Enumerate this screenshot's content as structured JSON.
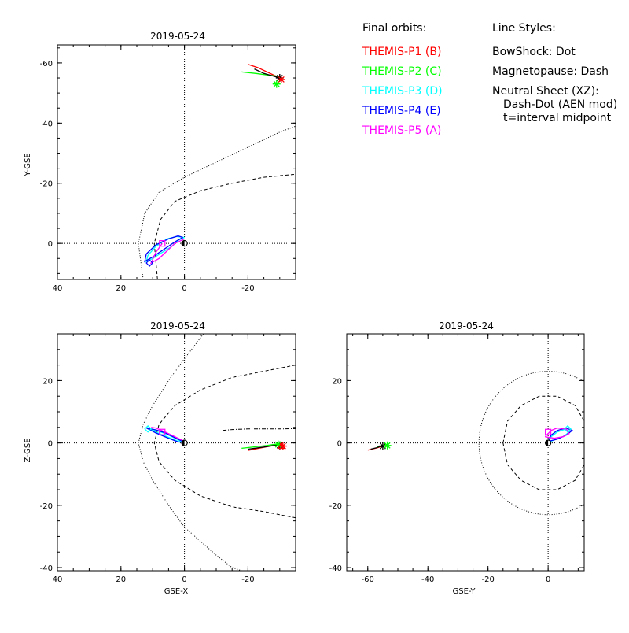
{
  "legend": {
    "title": "Final orbits:",
    "entries": [
      {
        "label": "THEMIS-P1 (B)",
        "color": "#ff0000"
      },
      {
        "label": "THEMIS-P2 (C)",
        "color": "#00ff00"
      },
      {
        "label": "THEMIS-P3 (D)",
        "color": "#00ffff"
      },
      {
        "label": "THEMIS-P4 (E)",
        "color": "#0000ff"
      },
      {
        "label": "THEMIS-P5 (A)",
        "color": "#ff00ff"
      }
    ]
  },
  "line_styles": {
    "title": "Line Styles:",
    "lines": [
      "BowShock: Dot",
      "Magnetopause: Dash",
      "Neutral Sheet (XZ):",
      "Dash-Dot (AEN mod)",
      "t=interval midpoint"
    ]
  },
  "chart_data": [
    {
      "type": "line",
      "title": "2019-05-24",
      "xlabel": "",
      "ylabel": "Y-GSE",
      "xlim": [
        40,
        -35
      ],
      "ylim": [
        12,
        -66
      ],
      "xticks": [
        40,
        20,
        0,
        -20
      ],
      "yticks": [
        0,
        -20,
        -40,
        -60
      ],
      "boundaries": {
        "bowshock": [
          [
            13,
            12
          ],
          [
            14.5,
            0
          ],
          [
            12.5,
            -10
          ],
          [
            8,
            -17
          ],
          [
            0,
            -22
          ],
          [
            -10,
            -27
          ],
          [
            -20,
            -32
          ],
          [
            -30,
            -37
          ],
          [
            -35,
            -39
          ]
        ],
        "magnetopause": [
          [
            8.5,
            12
          ],
          [
            9.5,
            0
          ],
          [
            7.5,
            -8
          ],
          [
            3,
            -14
          ],
          [
            -5,
            -17.5
          ],
          [
            -15,
            -20
          ],
          [
            -25,
            -22
          ],
          [
            -35,
            -23
          ]
        ]
      },
      "series": [
        {
          "name": "THEMIS-P1 (B)",
          "color": "#ff0000",
          "points": [
            [
              -30,
              -55
            ],
            [
              -26,
              -57
            ],
            [
              -23,
              -58.5
            ],
            [
              -20,
              -59.5
            ]
          ]
        },
        {
          "name": "THEMIS-P2 (C)",
          "color": "#00ff00",
          "points": [
            [
              -30,
              -55.5
            ],
            [
              -26,
              -56
            ],
            [
              -22.5,
              -56.5
            ],
            [
              -18,
              -57
            ]
          ]
        },
        {
          "name": "THEMIS-P3 (D)",
          "color": "#00ffff",
          "points": [
            [
              0,
              -2
            ],
            [
              2,
              -1
            ],
            [
              4,
              1
            ],
            [
              7,
              3
            ],
            [
              10,
              5
            ],
            [
              12,
              6
            ],
            [
              11.5,
              4
            ],
            [
              9,
              1
            ],
            [
              5.5,
              -1.5
            ],
            [
              2.5,
              -2.3
            ],
            [
              0,
              -2
            ]
          ]
        },
        {
          "name": "THEMIS-P4 (E)",
          "color": "#0000ff",
          "points": [
            [
              0.5,
              -2
            ],
            [
              3,
              -0.5
            ],
            [
              6.5,
              2
            ],
            [
              10,
              4.5
            ],
            [
              12.5,
              6
            ],
            [
              12,
              3.5
            ],
            [
              9,
              0.5
            ],
            [
              5,
              -1.5
            ],
            [
              2,
              -2.5
            ],
            [
              0.5,
              -2
            ]
          ]
        },
        {
          "name": "THEMIS-P5 (A)",
          "color": "#ff00ff",
          "points": [
            [
              0,
              -1.5
            ],
            [
              3,
              0
            ],
            [
              6,
              3
            ],
            [
              8,
              5
            ],
            [
              10.5,
              6.5
            ],
            [
              9,
              3
            ],
            [
              7,
              0
            ]
          ]
        }
      ],
      "black_track": [
        [
          -30,
          -55
        ],
        [
          -25,
          -56.5
        ],
        [
          -22,
          -58
        ]
      ],
      "markers": [
        {
          "kind": "star",
          "x": -30,
          "y": -55,
          "color": "#000000"
        },
        {
          "kind": "star",
          "x": -29,
          "y": -53,
          "color": "#00ff00"
        },
        {
          "kind": "star",
          "x": -30.5,
          "y": -54.5,
          "color": "#ff0000"
        },
        {
          "kind": "diamond",
          "x": 11,
          "y": 6.5,
          "color": "#0000ff"
        },
        {
          "kind": "square",
          "x": 7,
          "y": 0,
          "color": "#ff00ff"
        },
        {
          "kind": "circle",
          "x": 0,
          "y": 0,
          "color": "#000000"
        }
      ],
      "earth": true
    },
    {
      "type": "line",
      "title": "2019-05-24",
      "xlabel": "GSE-X",
      "ylabel": "Z-GSE",
      "xlim": [
        40,
        -35
      ],
      "ylim": [
        -41,
        35
      ],
      "xticks": [
        40,
        20,
        0,
        -20
      ],
      "yticks": [
        -40,
        -20,
        0,
        20
      ],
      "boundaries": {
        "bowshock": [
          [
            -6,
            35
          ],
          [
            0,
            27
          ],
          [
            5,
            20
          ],
          [
            10,
            12
          ],
          [
            13,
            6
          ],
          [
            14.5,
            0
          ],
          [
            13,
            -6
          ],
          [
            10,
            -12
          ],
          [
            5,
            -20
          ],
          [
            0,
            -27
          ],
          [
            -10,
            -36
          ],
          [
            -15,
            -40
          ],
          [
            -18,
            -41
          ]
        ],
        "magnetopause": [
          [
            -35,
            25
          ],
          [
            -25,
            23
          ],
          [
            -15,
            21
          ],
          [
            -5,
            17
          ],
          [
            3,
            12
          ],
          [
            8,
            6
          ],
          [
            9.5,
            0
          ],
          [
            8,
            -6
          ],
          [
            3,
            -12
          ],
          [
            -5,
            -17
          ],
          [
            -15,
            -20.5
          ],
          [
            -25,
            -22
          ],
          [
            -35,
            -24
          ]
        ],
        "neutral_sheet": [
          [
            -12,
            4
          ],
          [
            -15,
            4.3
          ],
          [
            -20,
            4.5
          ],
          [
            -30,
            4.5
          ],
          [
            -35,
            4.6
          ]
        ]
      },
      "series": [
        {
          "name": "THEMIS-P1 (B)",
          "color": "#ff0000",
          "points": [
            [
              -30,
              -0.5
            ],
            [
              -26,
              -1.2
            ],
            [
              -23,
              -1.8
            ],
            [
              -20,
              -2.4
            ]
          ]
        },
        {
          "name": "THEMIS-P2 (C)",
          "color": "#00ff00",
          "points": [
            [
              -30,
              -0.2
            ],
            [
              -26,
              -0.8
            ],
            [
              -22.5,
              -1.2
            ],
            [
              -18,
              -1.7
            ]
          ]
        },
        {
          "name": "THEMIS-P3 (D)",
          "color": "#00ffff",
          "points": [
            [
              0,
              0
            ],
            [
              3,
              1.5
            ],
            [
              6,
              3
            ],
            [
              9,
              4
            ],
            [
              12,
              5
            ],
            [
              9,
              3.5
            ],
            [
              5,
              1.8
            ],
            [
              2,
              0.5
            ],
            [
              0,
              0
            ]
          ]
        },
        {
          "name": "THEMIS-P4 (E)",
          "color": "#0000ff",
          "points": [
            [
              0,
              0.2
            ],
            [
              3,
              1.7
            ],
            [
              6,
              3.2
            ],
            [
              9,
              4.2
            ],
            [
              12,
              4.8
            ],
            [
              9,
              3.2
            ],
            [
              5,
              1.5
            ],
            [
              2,
              0.3
            ],
            [
              0,
              0.2
            ]
          ]
        },
        {
          "name": "THEMIS-P5 (A)",
          "color": "#ff00ff",
          "points": [
            [
              0,
              0.5
            ],
            [
              3,
              2
            ],
            [
              6,
              3.5
            ],
            [
              9,
              4.8
            ],
            [
              10.5,
              5
            ]
          ]
        }
      ],
      "black_track": [
        [
          -30,
          -0.5
        ],
        [
          -25,
          -1.3
        ],
        [
          -20,
          -2
        ]
      ],
      "markers": [
        {
          "kind": "star",
          "x": -30,
          "y": -0.8,
          "color": "#000000"
        },
        {
          "kind": "star",
          "x": -29.5,
          "y": -0.5,
          "color": "#00ff00"
        },
        {
          "kind": "star",
          "x": -31,
          "y": -1,
          "color": "#ff0000"
        },
        {
          "kind": "triangle",
          "x": -30.5,
          "y": -1,
          "color": "#ff0000"
        },
        {
          "kind": "square",
          "x": 7,
          "y": 3.5,
          "color": "#ff00ff"
        },
        {
          "kind": "diamond",
          "x": 11.5,
          "y": 4.5,
          "color": "#00ffff"
        },
        {
          "kind": "circle",
          "x": 0,
          "y": 0,
          "color": "#000000"
        }
      ],
      "earth": true
    },
    {
      "type": "line",
      "title": "2019-05-24",
      "xlabel": "GSE-Y",
      "ylabel": "",
      "xlim": [
        -67,
        12
      ],
      "ylim": [
        -41,
        35
      ],
      "xticks": [
        -60,
        -40,
        -20,
        0
      ],
      "yticks": [
        -40,
        -20,
        0,
        20
      ],
      "boundaries": {
        "bowshock_circle": {
          "cx": 0,
          "cy": 0,
          "r": 23
        },
        "magnetopause_arc": [
          [
            -15,
            0
          ],
          [
            -13.5,
            7
          ],
          [
            -9,
            12
          ],
          [
            -3,
            15
          ],
          [
            3,
            15
          ],
          [
            9,
            12
          ],
          [
            12,
            7
          ]
        ],
        "magnetopause_arc_lower": [
          [
            -15,
            0
          ],
          [
            -13.5,
            -7
          ],
          [
            -9,
            -12
          ],
          [
            -3,
            -15
          ],
          [
            3,
            -15
          ],
          [
            9,
            -12
          ],
          [
            12,
            -7
          ]
        ]
      },
      "series": [
        {
          "name": "THEMIS-P1 (B)",
          "color": "#ff0000",
          "points": [
            [
              -60,
              -2.3
            ],
            [
              -57,
              -1.6
            ],
            [
              -55,
              -1
            ]
          ]
        },
        {
          "name": "THEMIS-P2 (C)",
          "color": "#00ff00",
          "points": [
            [
              -57,
              -1.2
            ],
            [
              -55,
              -0.8
            ],
            [
              -53,
              -0.4
            ]
          ]
        },
        {
          "name": "THEMIS-P3 (D)",
          "color": "#00ffff",
          "points": [
            [
              0,
              0
            ],
            [
              1,
              2
            ],
            [
              3,
              3.5
            ],
            [
              6,
              4.5
            ],
            [
              7,
              3.5
            ],
            [
              5,
              2
            ],
            [
              2,
              1
            ],
            [
              0,
              0
            ]
          ]
        },
        {
          "name": "THEMIS-P4 (E)",
          "color": "#0000ff",
          "points": [
            [
              0,
              0.5
            ],
            [
              1,
              2.5
            ],
            [
              3,
              4
            ],
            [
              6,
              4.8
            ],
            [
              8,
              4
            ],
            [
              6,
              2.5
            ],
            [
              3,
              1.2
            ],
            [
              0,
              0.5
            ]
          ]
        },
        {
          "name": "THEMIS-P5 (A)",
          "color": "#ff00ff",
          "points": [
            [
              -1,
              2
            ],
            [
              1,
              4
            ],
            [
              3,
              4.8
            ],
            [
              6,
              4.5
            ],
            [
              7,
              3
            ],
            [
              5,
              2
            ],
            [
              2,
              1.5
            ],
            [
              -1,
              2
            ]
          ]
        }
      ],
      "black_track": [
        [
          -59,
          -2
        ],
        [
          -57,
          -1.5
        ],
        [
          -55,
          -0.8
        ]
      ],
      "markers": [
        {
          "kind": "star",
          "x": -55,
          "y": -1,
          "color": "#000000"
        },
        {
          "kind": "star",
          "x": -53.5,
          "y": -0.8,
          "color": "#00ff00"
        },
        {
          "kind": "square",
          "x": 0,
          "y": 3.5,
          "color": "#ff00ff"
        },
        {
          "kind": "diamond",
          "x": 6.5,
          "y": 4.5,
          "color": "#00ffff"
        },
        {
          "kind": "circle",
          "x": 0,
          "y": 0,
          "color": "#000000"
        }
      ],
      "earth": true
    }
  ]
}
